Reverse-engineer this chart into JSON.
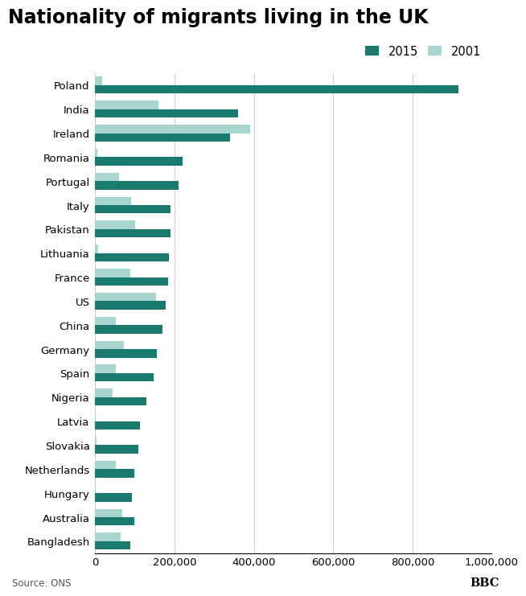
{
  "title": "Nationality of migrants living in the UK",
  "source": "Source: ONS",
  "bbc_label": "BBC",
  "legend_2015": "2015",
  "legend_2001": "2001",
  "color_2015": "#1a7a6e",
  "color_2001": "#a8d5cf",
  "background_color": "#ffffff",
  "categories": [
    "Poland",
    "India",
    "Ireland",
    "Romania",
    "Portugal",
    "Italy",
    "Pakistan",
    "Lithuania",
    "France",
    "US",
    "China",
    "Germany",
    "Spain",
    "Nigeria",
    "Latvia",
    "Slovakia",
    "Netherlands",
    "Hungary",
    "Australia",
    "Bangladesh"
  ],
  "values_2015": [
    916000,
    360000,
    340000,
    220000,
    210000,
    190000,
    190000,
    185000,
    183000,
    178000,
    170000,
    155000,
    148000,
    128000,
    113000,
    108000,
    98000,
    93000,
    98000,
    88000
  ],
  "values_2001": [
    17000,
    160000,
    390000,
    5000,
    60000,
    90000,
    100000,
    8000,
    88000,
    153000,
    52000,
    73000,
    52000,
    43000,
    2000,
    4000,
    52000,
    2000,
    68000,
    63000
  ],
  "xlim": [
    0,
    1000000
  ],
  "xticks": [
    0,
    200000,
    400000,
    600000,
    800000,
    1000000
  ],
  "xtick_labels": [
    "0",
    "200,000",
    "400,000",
    "600,000",
    "800,000",
    "1,000,000"
  ],
  "bar_height": 0.35,
  "title_fontsize": 17,
  "tick_fontsize": 9.5,
  "legend_fontsize": 10.5,
  "source_fontsize": 8.5
}
